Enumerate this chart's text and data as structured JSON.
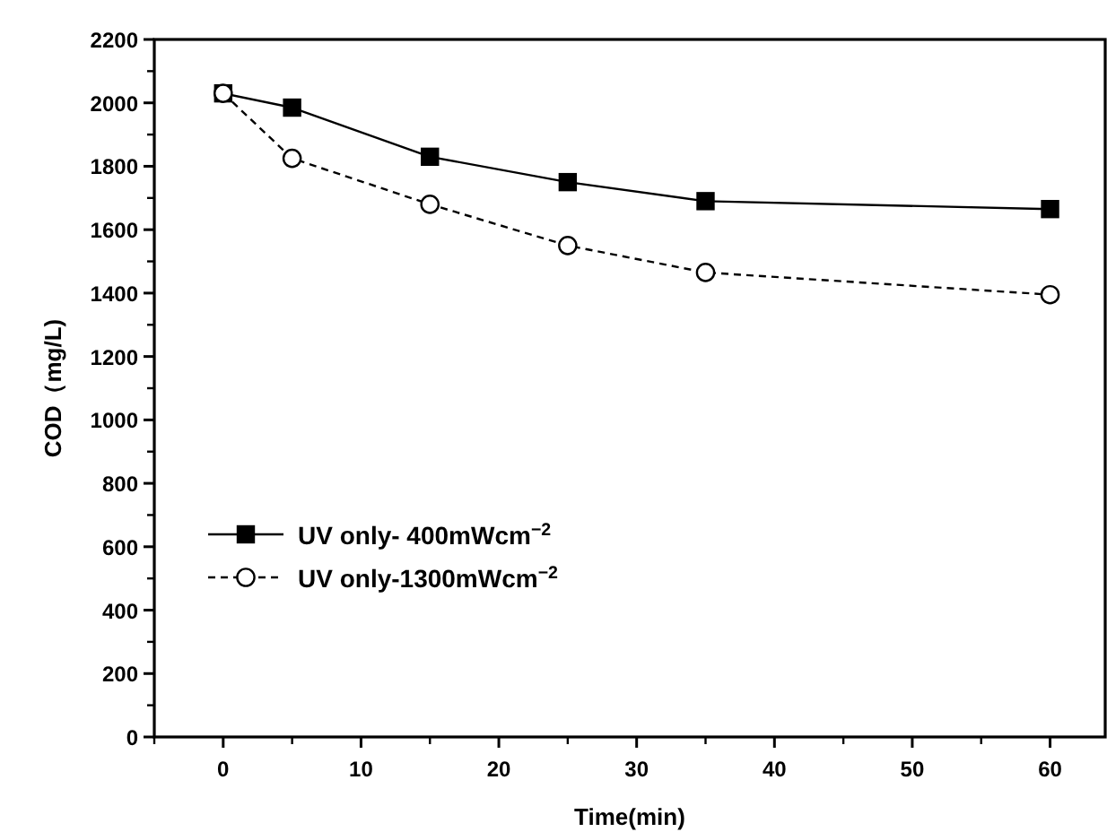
{
  "chart_data": {
    "type": "line",
    "xlabel": "Time(min)",
    "ylabel": "COD（mg/L)",
    "x": [
      0,
      5,
      15,
      25,
      35,
      60
    ],
    "series": [
      {
        "name": "UV only- 400mWcm$^{−2}$",
        "color": "#000000",
        "values": [
          2030,
          1985,
          1830,
          1750,
          1690,
          1665
        ],
        "marker": "square",
        "line_style": "solid"
      },
      {
        "name": "UV only-1300mWcm$^{−2}$",
        "color": "#000000",
        "values": [
          2030,
          1825,
          1680,
          1550,
          1465,
          1395
        ],
        "marker": "circle",
        "line_style": "dashed"
      }
    ],
    "xlim": [
      -5,
      64
    ],
    "xticks": [
      0,
      10,
      20,
      30,
      40,
      50,
      60
    ],
    "ylim": [
      0,
      2200
    ],
    "yticks": [
      0,
      200,
      400,
      600,
      800,
      1000,
      1200,
      1400,
      1600,
      1800,
      2000,
      2200
    ],
    "grid": false,
    "legend": "bottom left"
  }
}
